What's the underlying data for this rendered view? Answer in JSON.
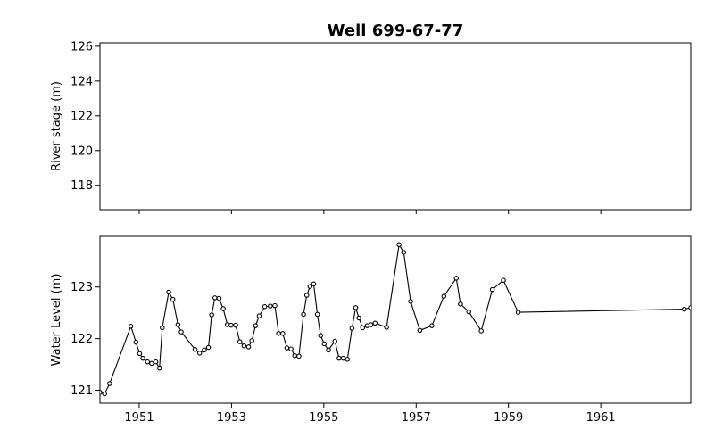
{
  "chart_data": {
    "title": "Well 699-67-77",
    "x_ticks": [
      "1951",
      "1953",
      "1955",
      "1957",
      "1959",
      "1961"
    ],
    "xlim": [
      1950.15,
      1962.95
    ],
    "panels": [
      {
        "type": "line",
        "ylabel": "River stage (m)",
        "ylim": [
          116.6,
          126.2
        ],
        "y_ticks": [
          118,
          120,
          122,
          124,
          126
        ],
        "y_tick_labels": [
          "118",
          "120",
          "122",
          "124",
          "126"
        ],
        "x_tick_labels_visible": false,
        "series": []
      },
      {
        "type": "line",
        "ylabel": "Water Level (m)",
        "ylim": [
          120.75,
          123.98
        ],
        "y_ticks": [
          121,
          122,
          123
        ],
        "y_tick_labels": [
          "121",
          "122",
          "123"
        ],
        "x_tick_labels_visible": true,
        "series": [
          {
            "color": "#000000",
            "marker": "open-circle",
            "points": [
              [
                1950.15,
                120.96
              ],
              [
                1950.25,
                120.93
              ],
              [
                1950.36,
                121.13
              ],
              [
                1950.82,
                122.24
              ],
              [
                1950.93,
                121.93
              ],
              [
                1951.01,
                121.71
              ],
              [
                1951.08,
                121.62
              ],
              [
                1951.18,
                121.55
              ],
              [
                1951.27,
                121.52
              ],
              [
                1951.36,
                121.55
              ],
              [
                1951.44,
                121.43
              ],
              [
                1951.5,
                122.21
              ],
              [
                1951.64,
                122.9
              ],
              [
                1951.73,
                122.76
              ],
              [
                1951.84,
                122.27
              ],
              [
                1951.91,
                122.13
              ],
              [
                1952.21,
                121.79
              ],
              [
                1952.31,
                121.72
              ],
              [
                1952.41,
                121.78
              ],
              [
                1952.5,
                121.83
              ],
              [
                1952.57,
                122.46
              ],
              [
                1952.64,
                122.79
              ],
              [
                1952.73,
                122.78
              ],
              [
                1952.82,
                122.58
              ],
              [
                1952.91,
                122.27
              ],
              [
                1952.99,
                122.26
              ],
              [
                1953.09,
                122.26
              ],
              [
                1953.18,
                121.94
              ],
              [
                1953.27,
                121.86
              ],
              [
                1953.37,
                121.84
              ],
              [
                1953.44,
                121.96
              ],
              [
                1953.52,
                122.25
              ],
              [
                1953.6,
                122.44
              ],
              [
                1953.72,
                122.62
              ],
              [
                1953.84,
                122.63
              ],
              [
                1953.94,
                122.64
              ],
              [
                1954.02,
                122.1
              ],
              [
                1954.11,
                122.1
              ],
              [
                1954.2,
                121.82
              ],
              [
                1954.29,
                121.8
              ],
              [
                1954.37,
                121.67
              ],
              [
                1954.46,
                121.66
              ],
              [
                1954.56,
                122.47
              ],
              [
                1954.63,
                122.84
              ],
              [
                1954.7,
                123.01
              ],
              [
                1954.78,
                123.06
              ],
              [
                1954.86,
                122.47
              ],
              [
                1954.93,
                122.06
              ],
              [
                1955.01,
                121.9
              ],
              [
                1955.1,
                121.78
              ],
              [
                1955.24,
                121.95
              ],
              [
                1955.33,
                121.62
              ],
              [
                1955.42,
                121.62
              ],
              [
                1955.51,
                121.6
              ],
              [
                1955.61,
                122.2
              ],
              [
                1955.69,
                122.6
              ],
              [
                1955.76,
                122.4
              ],
              [
                1955.84,
                122.21
              ],
              [
                1955.94,
                122.25
              ],
              [
                1956.02,
                122.27
              ],
              [
                1956.11,
                122.3
              ],
              [
                1956.36,
                122.22
              ],
              [
                1956.63,
                123.82
              ],
              [
                1956.73,
                123.67
              ],
              [
                1956.88,
                122.72
              ],
              [
                1957.08,
                122.16
              ],
              [
                1957.34,
                122.25
              ],
              [
                1957.6,
                122.82
              ],
              [
                1957.87,
                123.17
              ],
              [
                1957.96,
                122.67
              ],
              [
                1958.14,
                122.52
              ],
              [
                1958.41,
                122.15
              ],
              [
                1958.65,
                122.95
              ],
              [
                1958.89,
                123.13
              ],
              [
                1959.21,
                122.51
              ],
              [
                1962.81,
                122.57
              ],
              [
                1962.95,
                122.6
              ]
            ]
          }
        ]
      }
    ]
  }
}
